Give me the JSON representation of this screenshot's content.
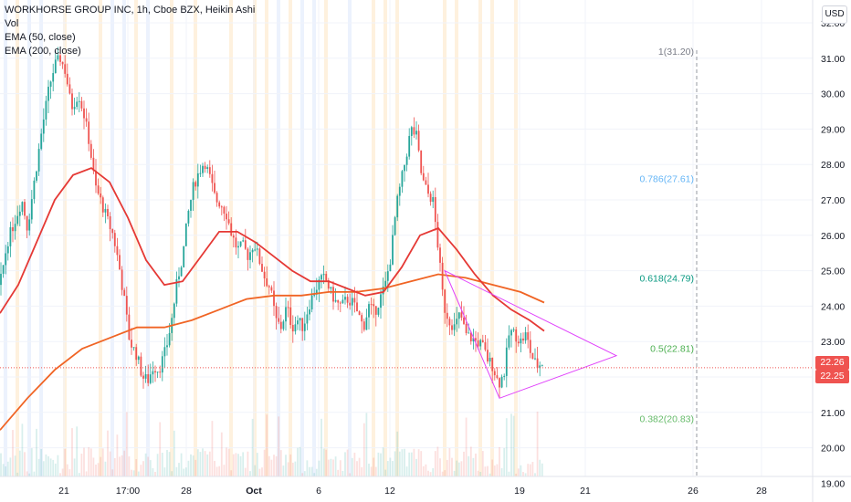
{
  "legend": {
    "title": "WORKHORSE GROUP INC, 1h, Cboe BZX, Heikin Ashi",
    "vol": "Vol",
    "ema50": "EMA (50, close)",
    "ema200": "EMA (200, close)"
  },
  "currency_button": "USD",
  "price_labels": {
    "upper": "22.26",
    "lower": "22.25"
  },
  "colors": {
    "up": "#26a69a",
    "down": "#ef5350",
    "ema50": "#e53935",
    "ema200": "#f06424",
    "triangle": "#e040fb",
    "grid": "#f0f3fa",
    "vstrip_orange": "#fde5c2",
    "vstrip_blue": "#dce7fb",
    "fib_1": "#787b86",
    "fib_786": "#64b5f6",
    "fib_618": "#089981",
    "fib_5": "#4caf50",
    "fib_382": "#66bb6a"
  },
  "chart_data": {
    "type": "candlestick",
    "title": "WORKHORSE GROUP INC, 1h, Cboe BZX, Heikin Ashi",
    "currency": "USD",
    "ylim": [
      19.0,
      32.0
    ],
    "y_ticks": [
      "32.00",
      "31.00",
      "30.00",
      "29.00",
      "28.00",
      "27.00",
      "26.00",
      "25.00",
      "24.00",
      "23.00",
      "22.00",
      "21.00",
      "20.00",
      "19.00"
    ],
    "x_ticks": [
      "21",
      "17:00",
      "28",
      "Oct",
      "6",
      "12",
      "19",
      "21",
      "26",
      "28"
    ],
    "price_path": [
      [
        0,
        24.6
      ],
      [
        8,
        25.8
      ],
      [
        16,
        26.4
      ],
      [
        24,
        27.0
      ],
      [
        30,
        26.2
      ],
      [
        38,
        27.6
      ],
      [
        46,
        29.0
      ],
      [
        54,
        30.2
      ],
      [
        60,
        30.8
      ],
      [
        66,
        31.0
      ],
      [
        72,
        30.6
      ],
      [
        78,
        29.6
      ],
      [
        86,
        30.0
      ],
      [
        92,
        29.4
      ],
      [
        98,
        28.6
      ],
      [
        104,
        27.4
      ],
      [
        110,
        27.0
      ],
      [
        118,
        26.4
      ],
      [
        124,
        26.0
      ],
      [
        130,
        25.2
      ],
      [
        136,
        24.2
      ],
      [
        142,
        23.0
      ],
      [
        150,
        22.6
      ],
      [
        156,
        22.0
      ],
      [
        162,
        21.9
      ],
      [
        168,
        22.3
      ],
      [
        174,
        22.2
      ],
      [
        182,
        22.8
      ],
      [
        188,
        23.6
      ],
      [
        194,
        24.7
      ],
      [
        200,
        25.4
      ],
      [
        206,
        26.6
      ],
      [
        212,
        27.4
      ],
      [
        218,
        27.8
      ],
      [
        224,
        28.1
      ],
      [
        230,
        27.6
      ],
      [
        236,
        27.0
      ],
      [
        242,
        26.9
      ],
      [
        248,
        26.6
      ],
      [
        254,
        26.0
      ],
      [
        260,
        25.6
      ],
      [
        266,
        25.7
      ],
      [
        272,
        25.4
      ],
      [
        278,
        25.8
      ],
      [
        284,
        25.3
      ],
      [
        290,
        24.8
      ],
      [
        296,
        24.5
      ],
      [
        302,
        23.6
      ],
      [
        308,
        23.4
      ],
      [
        314,
        24.0
      ],
      [
        320,
        23.4
      ],
      [
        326,
        23.6
      ],
      [
        332,
        23.4
      ],
      [
        338,
        24.0
      ],
      [
        344,
        24.4
      ],
      [
        350,
        24.7
      ],
      [
        356,
        24.8
      ],
      [
        362,
        24.4
      ],
      [
        368,
        24.1
      ],
      [
        374,
        24.0
      ],
      [
        380,
        24.2
      ],
      [
        386,
        24.1
      ],
      [
        392,
        23.8
      ],
      [
        398,
        23.4
      ],
      [
        404,
        24.0
      ],
      [
        410,
        23.8
      ],
      [
        416,
        24.2
      ],
      [
        422,
        24.6
      ],
      [
        428,
        25.4
      ],
      [
        434,
        26.8
      ],
      [
        440,
        27.6
      ],
      [
        446,
        28.4
      ],
      [
        450,
        29.0
      ],
      [
        456,
        28.8
      ],
      [
        462,
        27.6
      ],
      [
        468,
        27.2
      ],
      [
        474,
        27.0
      ],
      [
        480,
        25.6
      ],
      [
        486,
        24.0
      ],
      [
        492,
        23.6
      ],
      [
        498,
        23.4
      ],
      [
        504,
        23.8
      ],
      [
        510,
        23.2
      ],
      [
        516,
        23.1
      ],
      [
        522,
        23.0
      ],
      [
        528,
        22.9
      ],
      [
        534,
        22.5
      ],
      [
        540,
        22.3
      ],
      [
        546,
        21.8
      ],
      [
        552,
        22.1
      ],
      [
        558,
        23.3
      ],
      [
        564,
        23.2
      ],
      [
        570,
        23.0
      ],
      [
        576,
        23.2
      ],
      [
        582,
        22.6
      ],
      [
        588,
        22.3
      ],
      [
        594,
        22.4
      ]
    ],
    "ema50_path": [
      [
        0,
        23.8
      ],
      [
        20,
        24.6
      ],
      [
        40,
        25.8
      ],
      [
        60,
        27.0
      ],
      [
        80,
        27.7
      ],
      [
        100,
        27.9
      ],
      [
        120,
        27.5
      ],
      [
        140,
        26.5
      ],
      [
        160,
        25.3
      ],
      [
        180,
        24.6
      ],
      [
        200,
        24.7
      ],
      [
        220,
        25.4
      ],
      [
        240,
        26.1
      ],
      [
        260,
        26.1
      ],
      [
        280,
        25.8
      ],
      [
        300,
        25.4
      ],
      [
        320,
        25.0
      ],
      [
        340,
        24.7
      ],
      [
        360,
        24.7
      ],
      [
        380,
        24.5
      ],
      [
        400,
        24.3
      ],
      [
        420,
        24.4
      ],
      [
        440,
        25.1
      ],
      [
        460,
        26.0
      ],
      [
        480,
        26.2
      ],
      [
        500,
        25.6
      ],
      [
        520,
        24.9
      ],
      [
        540,
        24.3
      ],
      [
        560,
        23.9
      ],
      [
        580,
        23.6
      ],
      [
        596,
        23.3
      ]
    ],
    "ema200_path": [
      [
        0,
        20.5
      ],
      [
        30,
        21.4
      ],
      [
        60,
        22.2
      ],
      [
        90,
        22.8
      ],
      [
        120,
        23.1
      ],
      [
        150,
        23.4
      ],
      [
        180,
        23.4
      ],
      [
        210,
        23.6
      ],
      [
        240,
        23.9
      ],
      [
        270,
        24.2
      ],
      [
        300,
        24.3
      ],
      [
        330,
        24.3
      ],
      [
        360,
        24.4
      ],
      [
        390,
        24.4
      ],
      [
        420,
        24.5
      ],
      [
        450,
        24.7
      ],
      [
        480,
        24.9
      ],
      [
        510,
        24.8
      ],
      [
        540,
        24.6
      ],
      [
        570,
        24.4
      ],
      [
        596,
        24.1
      ]
    ],
    "triangle": [
      [
        487,
        25.0
      ],
      [
        547,
        21.4
      ],
      [
        675,
        22.6
      ]
    ],
    "fib_levels": [
      {
        "label": "1(31.20)",
        "price": 31.2
      },
      {
        "label": "0.786(27.61)",
        "price": 27.61
      },
      {
        "label": "0.618(24.79)",
        "price": 24.79
      },
      {
        "label": "0.5(22.81)",
        "price": 22.81
      },
      {
        "label": "0.382(20.83)",
        "price": 20.83
      }
    ],
    "last_price": 22.26,
    "last_price_lower": 22.25
  }
}
